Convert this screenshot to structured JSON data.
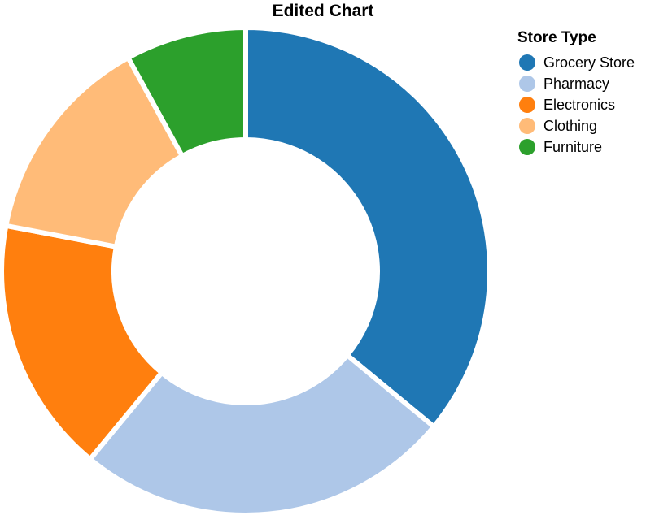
{
  "chart_data": {
    "type": "pie",
    "title": "Edited Chart",
    "legend": {
      "title": "Store Type",
      "placement": "top-right"
    },
    "categories": [
      "Grocery Store",
      "Pharmacy",
      "Electronics",
      "Clothing",
      "Furniture"
    ],
    "values": [
      36,
      25,
      17,
      14,
      8
    ],
    "colors": [
      "#1f77b4",
      "#aec7e8",
      "#ff7f0e",
      "#ffbb78",
      "#2ca02c"
    ],
    "donut": true
  }
}
